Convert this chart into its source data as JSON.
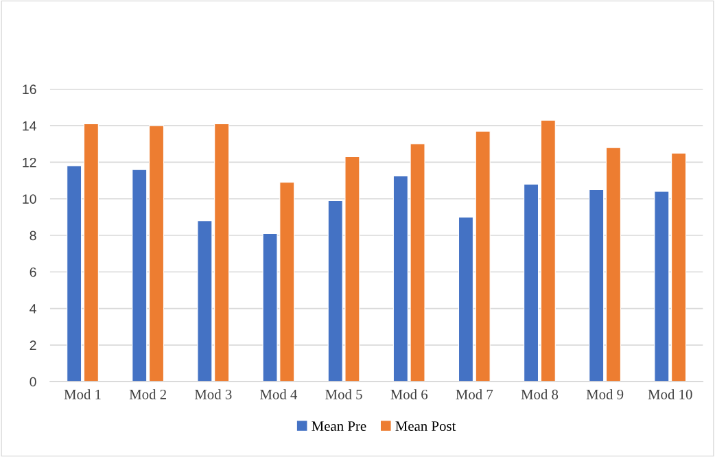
{
  "chart_data": {
    "type": "bar",
    "categories": [
      "Mod 1",
      "Mod 2",
      "Mod 3",
      "Mod 4",
      "Mod 5",
      "Mod 6",
      "Mod 7",
      "Mod 8",
      "Mod 9",
      "Mod 10"
    ],
    "series": [
      {
        "name": "Mean Pre",
        "color": "#4472c4",
        "values": [
          11.8,
          11.6,
          8.8,
          8.1,
          9.9,
          11.25,
          9.0,
          10.8,
          10.5,
          10.4
        ]
      },
      {
        "name": "Mean Post",
        "color": "#ed7d31",
        "values": [
          14.1,
          14.0,
          14.1,
          10.9,
          12.3,
          13.0,
          13.7,
          14.3,
          12.8,
          12.5
        ]
      }
    ],
    "ylim": [
      0,
      16
    ],
    "yticks": [
      0,
      2,
      4,
      6,
      8,
      10,
      12,
      14,
      16
    ],
    "grid": "y",
    "legend": "bottom"
  }
}
